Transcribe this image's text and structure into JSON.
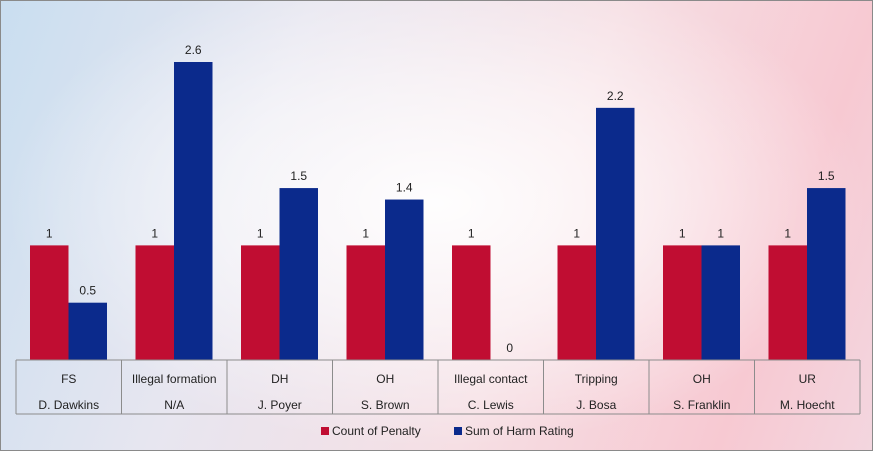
{
  "chart_data": {
    "type": "bar",
    "categories": [
      [
        "FS",
        "D. Dawkins"
      ],
      [
        "Illegal formation",
        "N/A"
      ],
      [
        "DH",
        "J. Poyer"
      ],
      [
        "OH",
        "S. Brown"
      ],
      [
        "Illegal contact",
        "C. Lewis"
      ],
      [
        "Tripping",
        "J. Bosa"
      ],
      [
        "OH",
        "S. Franklin"
      ],
      [
        "UR",
        "M. Hoecht"
      ]
    ],
    "series": [
      {
        "name": "Count of Penalty",
        "color": "#c00d32",
        "values": [
          1,
          1,
          1,
          1,
          1,
          1,
          1,
          1
        ]
      },
      {
        "name": "Sum of Harm Rating",
        "color": "#0b2a8c",
        "values": [
          0.5,
          2.6,
          1.5,
          1.4,
          0,
          2.2,
          1,
          1.5
        ]
      }
    ],
    "ylim": [
      0,
      2.6
    ],
    "grid": false,
    "legend_position": "bottom",
    "data_labels": true
  }
}
